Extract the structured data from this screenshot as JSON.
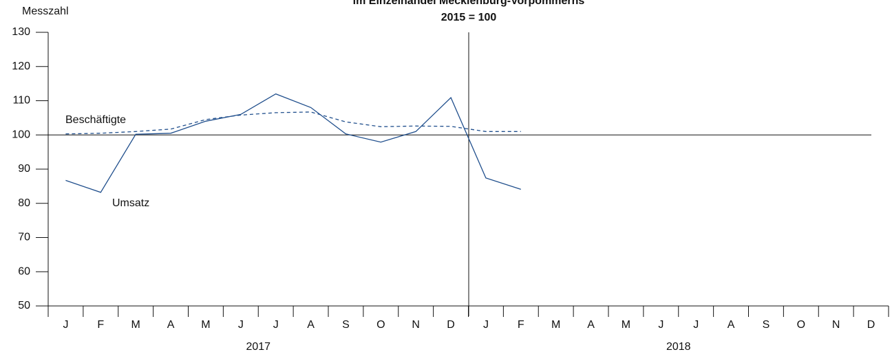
{
  "chart_data": {
    "type": "line",
    "title": "im Einzelhandel Mecklenburg-Vorpommerns",
    "subtitle": "2015 = 100",
    "y_label": "Messzahl",
    "categories": [
      "J",
      "F",
      "M",
      "A",
      "M",
      "J",
      "J",
      "A",
      "S",
      "O",
      "N",
      "D",
      "J",
      "F",
      "M",
      "A",
      "M",
      "J",
      "J",
      "A",
      "S",
      "O",
      "N",
      "D"
    ],
    "year_groups": [
      "2017",
      "2018"
    ],
    "series": [
      {
        "name": "Umsatz",
        "color": "#1f4e8c",
        "dashed": false,
        "values": [
          86.7,
          83.2,
          100.2,
          100.5,
          104,
          106,
          112,
          108,
          100.3,
          97.9,
          101,
          110.9,
          87.4,
          84.1,
          null,
          null,
          null,
          null,
          null,
          null,
          null,
          null,
          null,
          null
        ]
      },
      {
        "name": "Beschäftigte",
        "color": "#1f4e8c",
        "dashed": true,
        "values": [
          100.3,
          100.5,
          101,
          101.7,
          104.5,
          105.8,
          106.5,
          106.7,
          103.8,
          102.4,
          102.6,
          102.5,
          101,
          101,
          null,
          null,
          null,
          null,
          null,
          null,
          null,
          null,
          null,
          null
        ]
      }
    ],
    "reference_line": 100,
    "ylim": [
      50,
      130
    ],
    "yticks": [
      50,
      60,
      70,
      80,
      90,
      100,
      110,
      120,
      130
    ]
  }
}
